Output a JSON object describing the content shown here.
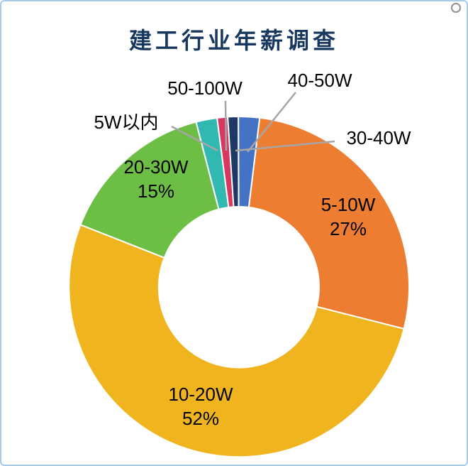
{
  "page": {
    "background": "#ffffff",
    "frame_color": "#A9CBE8"
  },
  "title": "建工行业年薪调查",
  "title_color": "#17375E",
  "chart_data": {
    "type": "pie",
    "subtype": "donut",
    "title": "建工行业年薪调查",
    "legend": "none",
    "labels_shown": "category names with leader lines for small slices; name + percent inside large slices",
    "start_angle_deg": 7,
    "leader_line_color": "#A6A6A6",
    "segments": [
      {
        "id": "5-10w",
        "label": "5-10W",
        "value": 27,
        "pct_text": "27%",
        "color": "#ED7D31"
      },
      {
        "id": "10-20w",
        "label": "10-20W",
        "value": 52,
        "pct_text": "52%",
        "color": "#F0B41E"
      },
      {
        "id": "20-30w",
        "label": "20-30W",
        "value": 15,
        "pct_text": "15%",
        "color": "#6CBE45"
      },
      {
        "id": "under-5w",
        "label": "5W以内",
        "value": 2,
        "pct_text": "",
        "color": "#31B8B1"
      },
      {
        "id": "50-100w",
        "label": "50-100W",
        "value": 1,
        "pct_text": "",
        "color": "#D63862"
      },
      {
        "id": "30-40w",
        "label": "30-40W",
        "value": 1,
        "pct_text": "",
        "color": "#1F3864"
      },
      {
        "id": "40-50w",
        "label": "40-50W",
        "value": 2,
        "pct_text": "",
        "color": "#4472C4"
      }
    ]
  }
}
